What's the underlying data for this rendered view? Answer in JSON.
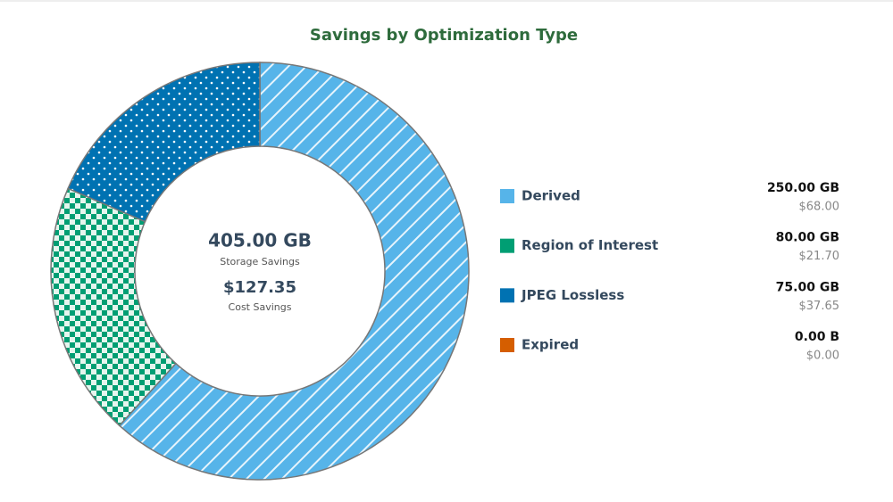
{
  "chart_data": {
    "type": "donut",
    "title": "Savings by Optimization Type",
    "center": {
      "total": "405.00 GB",
      "total_label": "Storage Savings",
      "cost": "$127.35",
      "cost_label": "Cost Savings"
    },
    "categories": [
      "Derived",
      "Region of Interest",
      "JPEG Lossless",
      "Expired"
    ],
    "values": [
      250,
      80,
      75,
      0
    ],
    "value_labels": [
      "250.00 GB",
      "80.00 GB",
      "75.00 GB",
      "0.00 B"
    ],
    "cost_labels": [
      "$68.00",
      "$21.70",
      "$37.65",
      "$0.00"
    ],
    "colors": [
      "#56b4e9",
      "#009e73",
      "#0072b2",
      "#d55e00"
    ],
    "patterns": [
      "stripes",
      "checks",
      "dots",
      "none"
    ]
  }
}
